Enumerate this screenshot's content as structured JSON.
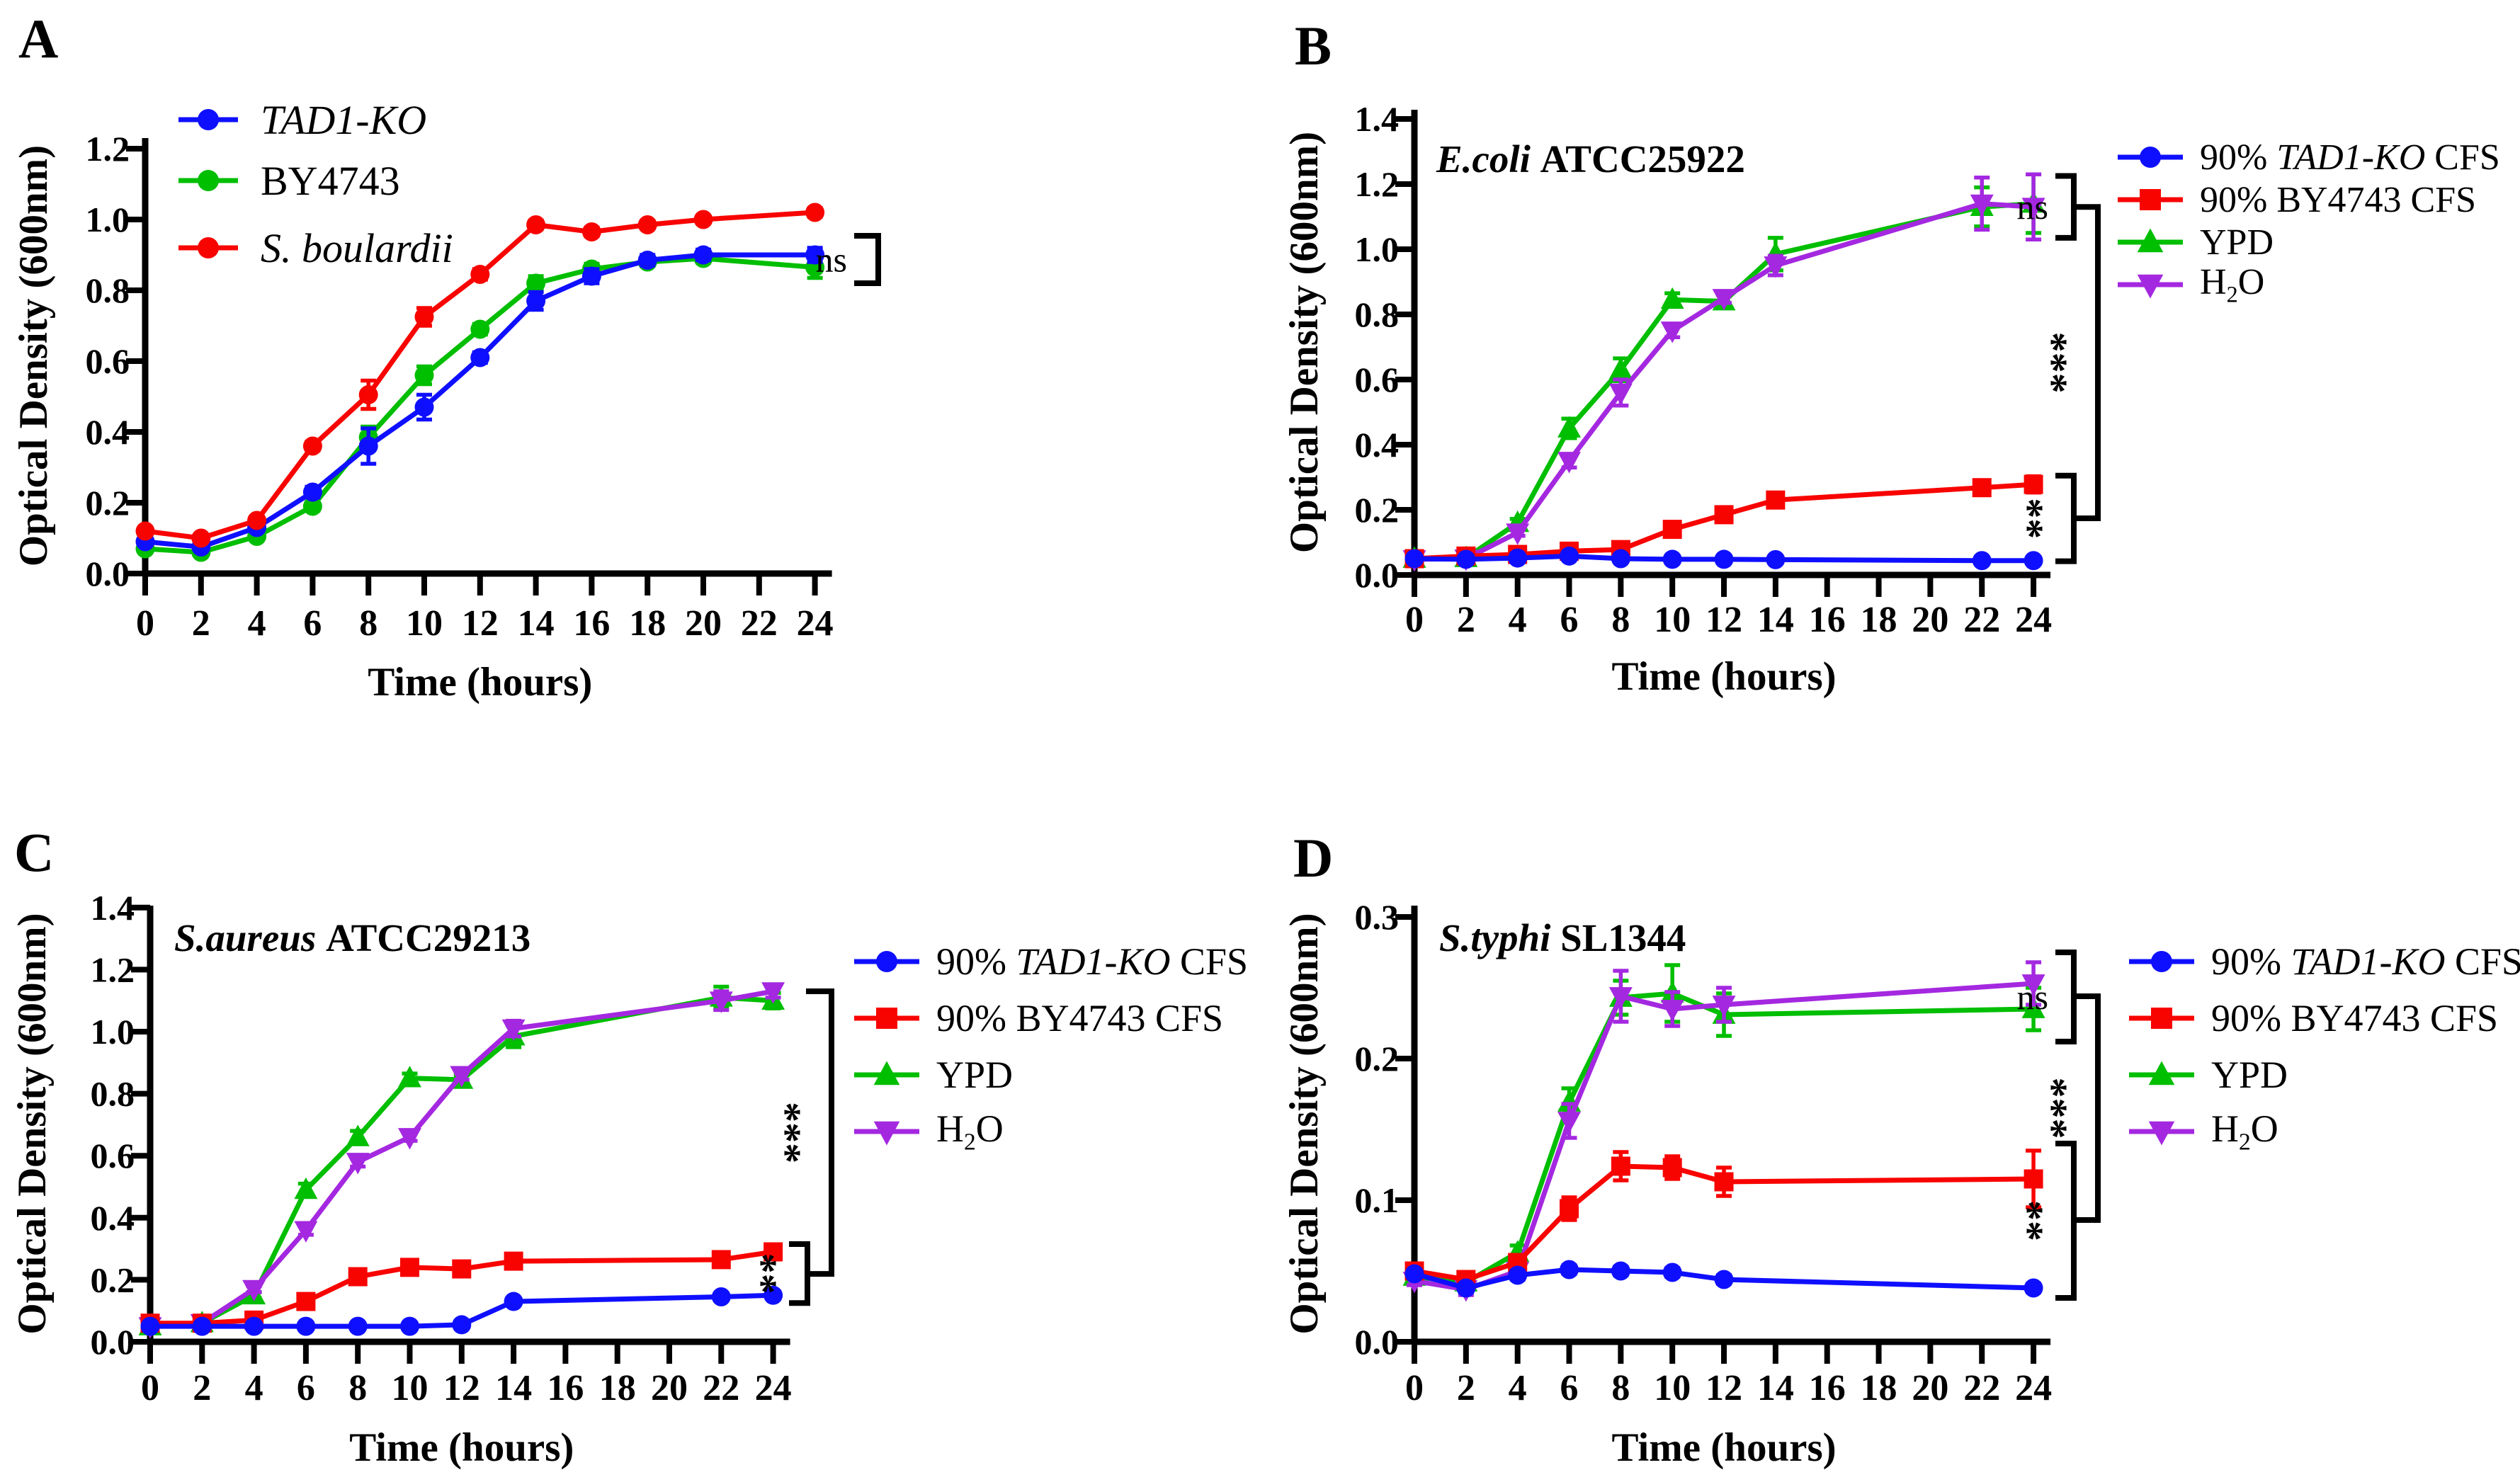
{
  "figure": {
    "background": "#ffffff",
    "axis_color": "#000000",
    "series_colors": {
      "blue": "#0F0FFF",
      "red": "#F80400",
      "green": "#00BE00",
      "purple": "#A428E0"
    }
  },
  "chart_data": [
    {
      "type": "line",
      "id": "A",
      "letter": "A",
      "ylabel": "Optical Density (600nm)",
      "xlabel": "Time (hours)",
      "ylim": [
        0,
        1.2
      ],
      "ytick_vals": [
        0,
        0.2,
        0.4,
        0.6,
        0.8,
        1.0,
        1.2
      ],
      "ytick_labels": [
        "0.0",
        "0.2",
        "0.4",
        "0.6",
        "0.8",
        "1.0",
        "1.2"
      ],
      "xticks": [
        0,
        2,
        4,
        6,
        8,
        10,
        12,
        14,
        16,
        18,
        20,
        22,
        24
      ],
      "legend_position": "inset-top-left",
      "series": [
        {
          "key": "tad1-ko",
          "label_parts": [
            {
              "t": "TAD1-KO",
              "i": true
            }
          ],
          "marker": "circle",
          "color": "#0F0FFF",
          "x": [
            0,
            2,
            4,
            6,
            8,
            10,
            12,
            14,
            16,
            18,
            20,
            24
          ],
          "y": [
            0.09,
            0.075,
            0.13,
            0.23,
            0.36,
            0.47,
            0.61,
            0.77,
            0.84,
            0.885,
            0.9,
            0.9
          ],
          "err": [
            0.01,
            0.008,
            0.01,
            0.015,
            0.05,
            0.035,
            0.015,
            0.025,
            0.02,
            0.015,
            0.015,
            0.02
          ]
        },
        {
          "key": "by4743",
          "label_parts": [
            {
              "t": "BY4743"
            }
          ],
          "marker": "circle",
          "color": "#00BE00",
          "x": [
            0,
            2,
            4,
            6,
            8,
            10,
            12,
            14,
            16,
            18,
            20,
            24
          ],
          "y": [
            0.07,
            0.06,
            0.105,
            0.19,
            0.385,
            0.56,
            0.69,
            0.82,
            0.86,
            0.88,
            0.89,
            0.865
          ],
          "err": [
            0.008,
            0.008,
            0.008,
            0.012,
            0.03,
            0.025,
            0.015,
            0.02,
            0.015,
            0.01,
            0.012,
            0.03
          ]
        },
        {
          "key": "s-boulardii",
          "label_parts": [
            {
              "t": "S. boulardii",
              "i": true
            }
          ],
          "marker": "circle",
          "color": "#F80400",
          "x": [
            0,
            2,
            4,
            6,
            8,
            10,
            12,
            14,
            16,
            18,
            20,
            24
          ],
          "y": [
            0.12,
            0.1,
            0.15,
            0.36,
            0.505,
            0.725,
            0.845,
            0.985,
            0.965,
            0.985,
            1.0,
            1.02
          ],
          "err": [
            0.01,
            0.008,
            0.01,
            0.012,
            0.04,
            0.025,
            0.015,
            0.012,
            0.012,
            0.01,
            0.01,
            0.012
          ]
        }
      ],
      "annotations": [
        {
          "label": "ns",
          "rotated": false,
          "tier": 0,
          "v_top": 0.954,
          "v_bot": 0.82
        }
      ]
    },
    {
      "type": "line",
      "id": "B",
      "letter": "B",
      "title_parts": [
        {
          "t": "E.coli",
          "i": true
        },
        {
          "t": " ATCC25922"
        }
      ],
      "ylabel": "Optical Density (600nm)",
      "xlabel": "Time (hours)",
      "ylim": [
        0,
        1.4
      ],
      "ytick_vals": [
        0,
        0.2,
        0.4,
        0.6,
        0.8,
        1.0,
        1.2,
        1.4
      ],
      "ytick_labels": [
        "0.0",
        "0.2",
        "0.4",
        "0.6",
        "0.8",
        "1.0",
        "1.2",
        "1.4"
      ],
      "xticks": [
        0,
        2,
        4,
        6,
        8,
        10,
        12,
        14,
        16,
        18,
        20,
        22,
        24
      ],
      "legend_position": "right",
      "series": [
        {
          "key": "tad1-ko-cfs",
          "label_parts": [
            {
              "t": "90% "
            },
            {
              "t": "TAD1-KO",
              "i": true
            },
            {
              "t": " CFS"
            }
          ],
          "marker": "circle",
          "color": "#0F0FFF",
          "x": [
            0,
            2,
            4,
            6,
            8,
            10,
            12,
            14,
            22,
            24
          ],
          "y": [
            0.05,
            0.048,
            0.052,
            0.058,
            0.05,
            0.048,
            0.048,
            0.047,
            0.044,
            0.044
          ],
          "err": [
            0.004,
            0.004,
            0.004,
            0.004,
            0.004,
            0.004,
            0.004,
            0.004,
            0.004,
            0.004
          ]
        },
        {
          "key": "by4743-cfs",
          "label_parts": [
            {
              "t": "90% BY4743 CFS"
            }
          ],
          "marker": "square",
          "color": "#F80400",
          "x": [
            0,
            2,
            4,
            6,
            8,
            10,
            12,
            14,
            22,
            24
          ],
          "y": [
            0.05,
            0.058,
            0.063,
            0.073,
            0.078,
            0.14,
            0.185,
            0.23,
            0.268,
            0.278
          ],
          "err": [
            0.005,
            0.005,
            0.005,
            0.006,
            0.006,
            0.01,
            0.012,
            0.012,
            0.02,
            0.025
          ]
        },
        {
          "key": "ypd",
          "label_parts": [
            {
              "t": "YPD"
            }
          ],
          "marker": "triup",
          "color": "#00BE00",
          "x": [
            0,
            2,
            4,
            6,
            8,
            10,
            12,
            14,
            22,
            24
          ],
          "y": [
            0.05,
            0.052,
            0.16,
            0.45,
            0.63,
            0.845,
            0.84,
            0.985,
            1.13,
            1.14
          ],
          "err": [
            0.004,
            0.004,
            0.012,
            0.03,
            0.035,
            0.02,
            0.02,
            0.05,
            0.06,
            0.09
          ]
        },
        {
          "key": "h2o",
          "label_parts": [
            {
              "t": "H"
            },
            {
              "t": "2",
              "sub": true
            },
            {
              "t": "O"
            }
          ],
          "marker": "tridown",
          "color": "#A428E0",
          "x": [
            0,
            2,
            4,
            6,
            8,
            10,
            12,
            14,
            22,
            24
          ],
          "y": [
            0.048,
            0.05,
            0.13,
            0.35,
            0.56,
            0.75,
            0.85,
            0.95,
            1.14,
            1.13
          ],
          "err": [
            0.004,
            0.004,
            0.01,
            0.02,
            0.04,
            0.02,
            0.015,
            0.03,
            0.08,
            0.1
          ]
        }
      ],
      "annotations": [
        {
          "label": "ns",
          "rotated": false,
          "tier": 0,
          "v_top": 1.225,
          "v_bot": 1.035
        },
        {
          "label": "***",
          "rotated": true,
          "tier": 1,
          "v_top": 1.13,
          "v_bot": 0.174
        },
        {
          "label": "**",
          "rotated": true,
          "tier": 0,
          "v_top": 0.305,
          "v_bot": 0.042
        }
      ]
    },
    {
      "type": "line",
      "id": "C",
      "letter": "C",
      "title_parts": [
        {
          "t": "S.aureus",
          "i": true
        },
        {
          "t": " ATCC29213"
        }
      ],
      "ylabel": "Optical Density (600nm)",
      "xlabel": "Time (hours)",
      "ylim": [
        0,
        1.4
      ],
      "ytick_vals": [
        0,
        0.2,
        0.4,
        0.6,
        0.8,
        1.0,
        1.2,
        1.4
      ],
      "ytick_labels": [
        "0.0",
        "0.2",
        "0.4",
        "0.6",
        "0.8",
        "1.0",
        "1.2",
        "1.4"
      ],
      "xticks": [
        0,
        2,
        4,
        6,
        8,
        10,
        12,
        14,
        16,
        18,
        20,
        22,
        24
      ],
      "legend_position": "right",
      "series": [
        {
          "key": "tad1-ko-cfs",
          "label_parts": [
            {
              "t": "90% "
            },
            {
              "t": "TAD1-KO",
              "i": true
            },
            {
              "t": " CFS"
            }
          ],
          "marker": "circle",
          "color": "#0F0FFF",
          "x": [
            0,
            2,
            4,
            6,
            8,
            10,
            12,
            14,
            22,
            24
          ],
          "y": [
            0.05,
            0.05,
            0.05,
            0.05,
            0.05,
            0.05,
            0.055,
            0.13,
            0.145,
            0.15
          ],
          "err": [
            0.004,
            0.004,
            0.004,
            0.004,
            0.004,
            0.004,
            0.005,
            0.008,
            0.008,
            0.012
          ]
        },
        {
          "key": "by4743-cfs",
          "label_parts": [
            {
              "t": "90% BY4743 CFS"
            }
          ],
          "marker": "square",
          "color": "#F80400",
          "x": [
            0,
            2,
            4,
            6,
            8,
            10,
            12,
            14,
            22,
            24
          ],
          "y": [
            0.06,
            0.06,
            0.07,
            0.13,
            0.21,
            0.24,
            0.235,
            0.26,
            0.265,
            0.29
          ],
          "err": [
            0.005,
            0.005,
            0.005,
            0.006,
            0.008,
            0.008,
            0.008,
            0.008,
            0.01,
            0.02
          ]
        },
        {
          "key": "ypd",
          "label_parts": [
            {
              "t": "YPD"
            }
          ],
          "marker": "triup",
          "color": "#00BE00",
          "x": [
            0,
            2,
            4,
            6,
            8,
            10,
            12,
            14,
            22,
            24
          ],
          "y": [
            0.05,
            0.06,
            0.15,
            0.49,
            0.66,
            0.85,
            0.845,
            0.985,
            1.11,
            1.1
          ],
          "err": [
            0.004,
            0.004,
            0.01,
            0.02,
            0.02,
            0.015,
            0.015,
            0.035,
            0.035,
            0.025
          ]
        },
        {
          "key": "h2o",
          "label_parts": [
            {
              "t": "H"
            },
            {
              "t": "2",
              "sub": true
            },
            {
              "t": "O"
            }
          ],
          "marker": "tridown",
          "color": "#A428E0",
          "x": [
            0,
            2,
            4,
            6,
            8,
            10,
            12,
            14,
            22,
            24
          ],
          "y": [
            0.05,
            0.06,
            0.17,
            0.36,
            0.58,
            0.66,
            0.86,
            1.01,
            1.1,
            1.13
          ],
          "err": [
            0.004,
            0.004,
            0.01,
            0.015,
            0.015,
            0.012,
            0.015,
            0.025,
            0.03,
            0.02
          ]
        }
      ],
      "annotations": [
        {
          "label": "***",
          "rotated": true,
          "tier": 1,
          "v_top": 1.13,
          "v_bot": 0.219
        },
        {
          "label": "**",
          "rotated": true,
          "tier": 0,
          "v_top": 0.315,
          "v_bot": 0.125
        }
      ]
    },
    {
      "type": "line",
      "id": "D",
      "letter": "D",
      "title_parts": [
        {
          "t": "S.typhi",
          "i": true
        },
        {
          "t": " SL1344"
        }
      ],
      "ylabel": "Optical Density (600nm)",
      "xlabel": "Time (hours)",
      "ylim": [
        0,
        0.3
      ],
      "ytick_vals": [
        0,
        0.1,
        0.2,
        0.3
      ],
      "ytick_labels": [
        "0.0",
        "0.1",
        "0.2",
        "0.3"
      ],
      "xticks": [
        0,
        2,
        4,
        6,
        8,
        10,
        12,
        14,
        16,
        18,
        20,
        22,
        24
      ],
      "legend_position": "right",
      "series": [
        {
          "key": "tad1-ko-cfs",
          "label_parts": [
            {
              "t": "90% "
            },
            {
              "t": "TAD1-KO",
              "i": true
            },
            {
              "t": " CFS"
            }
          ],
          "marker": "circle",
          "color": "#0F0FFF",
          "x": [
            0,
            2,
            4,
            6,
            8,
            10,
            12,
            24
          ],
          "y": [
            0.048,
            0.038,
            0.047,
            0.051,
            0.05,
            0.049,
            0.044,
            0.038
          ],
          "err": [
            0.003,
            0.003,
            0.003,
            0.003,
            0.003,
            0.003,
            0.003,
            0.003
          ]
        },
        {
          "key": "by4743-cfs",
          "label_parts": [
            {
              "t": "90% BY4743 CFS"
            }
          ],
          "marker": "square",
          "color": "#F80400",
          "x": [
            0,
            2,
            4,
            6,
            8,
            10,
            12,
            24
          ],
          "y": [
            0.05,
            0.044,
            0.056,
            0.094,
            0.124,
            0.123,
            0.113,
            0.115
          ],
          "err": [
            0.004,
            0.004,
            0.005,
            0.008,
            0.01,
            0.008,
            0.01,
            0.02
          ]
        },
        {
          "key": "ypd",
          "label_parts": [
            {
              "t": "YPD"
            }
          ],
          "marker": "triup",
          "color": "#00BE00",
          "x": [
            0,
            2,
            4,
            6,
            8,
            10,
            12,
            24
          ],
          "y": [
            0.046,
            0.042,
            0.063,
            0.169,
            0.243,
            0.246,
            0.231,
            0.235
          ],
          "err": [
            0.003,
            0.004,
            0.005,
            0.01,
            0.012,
            0.02,
            0.015,
            0.015
          ]
        },
        {
          "key": "h2o",
          "label_parts": [
            {
              "t": "H"
            },
            {
              "t": "2",
              "sub": true
            },
            {
              "t": "O"
            }
          ],
          "marker": "tridown",
          "color": "#A428E0",
          "x": [
            0,
            2,
            4,
            6,
            8,
            10,
            12,
            24
          ],
          "y": [
            0.043,
            0.037,
            0.05,
            0.156,
            0.244,
            0.235,
            0.238,
            0.253
          ],
          "err": [
            0.003,
            0.004,
            0.004,
            0.012,
            0.018,
            0.012,
            0.012,
            0.015
          ]
        }
      ],
      "annotations": [
        {
          "label": "ns",
          "rotated": false,
          "tier": 0,
          "v_top": 0.275,
          "v_bot": 0.212
        },
        {
          "label": "***",
          "rotated": true,
          "tier": 1,
          "v_top": 0.244,
          "v_bot": 0.086
        },
        {
          "label": "**",
          "rotated": true,
          "tier": 0,
          "v_top": 0.14,
          "v_bot": 0.031
        }
      ]
    }
  ]
}
